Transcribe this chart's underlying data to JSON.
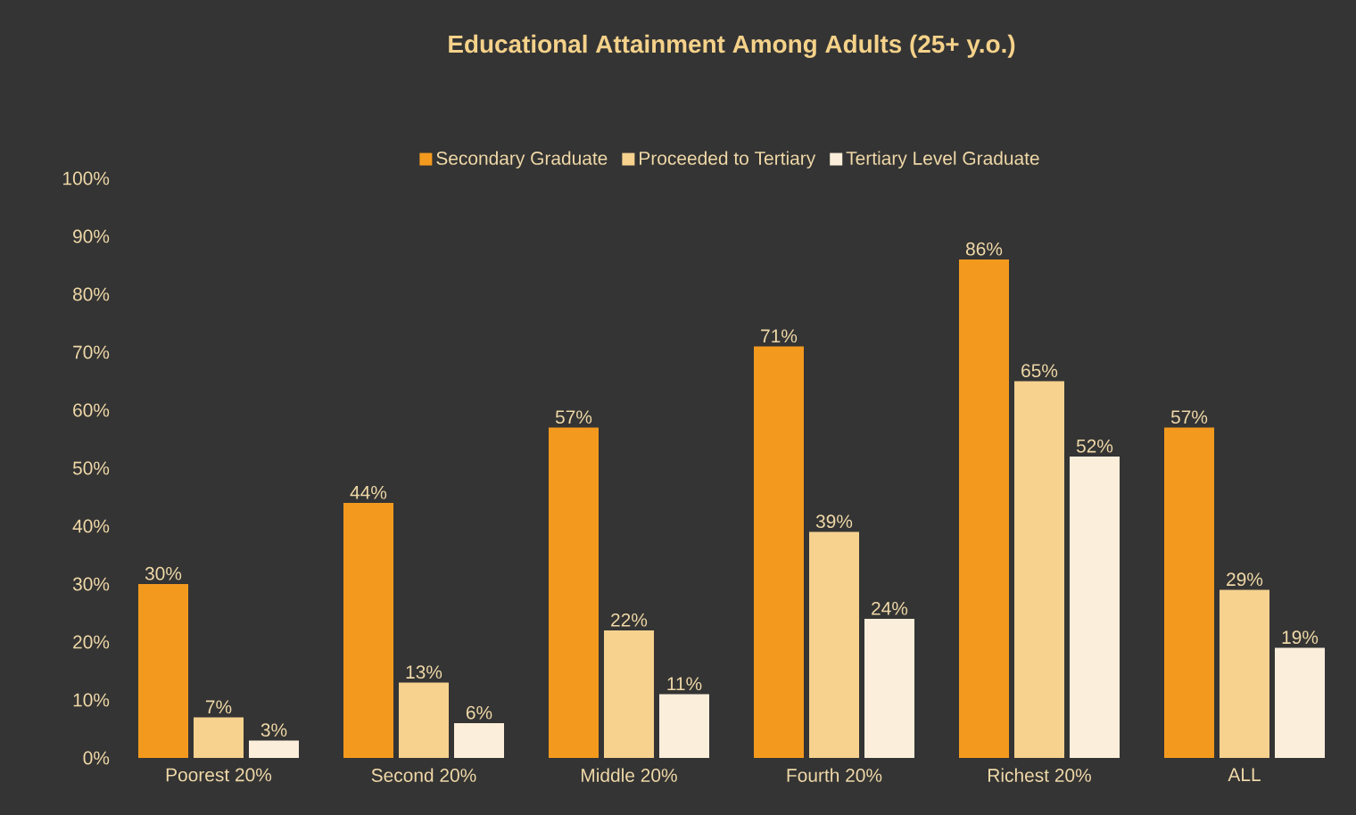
{
  "chart_data": {
    "type": "bar",
    "title": "Educational Attainment Among Adults (25+ y.o.)",
    "categories": [
      "Poorest 20%",
      "Second 20%",
      "Middle 20%",
      "Fourth 20%",
      "Richest 20%",
      "ALL"
    ],
    "series": [
      {
        "name": "Secondary Graduate",
        "color": "#f39a1e",
        "values": [
          30,
          44,
          57,
          71,
          86,
          57
        ],
        "value_labels": [
          "30%",
          "44%",
          "57%",
          "71%",
          "86%",
          "57%"
        ]
      },
      {
        "name": "Proceeded to Tertiary",
        "color": "#f7d28f",
        "values": [
          7,
          13,
          22,
          39,
          65,
          29
        ],
        "value_labels": [
          "7%",
          "13%",
          "22%",
          "39%",
          "65%",
          "29%"
        ]
      },
      {
        "name": "Tertiary Level Graduate",
        "color": "#fbeedb",
        "values": [
          3,
          6,
          11,
          24,
          52,
          19
        ],
        "value_labels": [
          "3%",
          "6%",
          "11%",
          "24%",
          "52%",
          "19%"
        ]
      }
    ],
    "ylim": [
      0,
      100
    ],
    "yticks": [
      {
        "value": 0,
        "label": "0%"
      },
      {
        "value": 10,
        "label": "10%"
      },
      {
        "value": 20,
        "label": "20%"
      },
      {
        "value": 30,
        "label": "30%"
      },
      {
        "value": 40,
        "label": "40%"
      },
      {
        "value": 50,
        "label": "50%"
      },
      {
        "value": 60,
        "label": "60%"
      },
      {
        "value": 70,
        "label": "70%"
      },
      {
        "value": 80,
        "label": "80%"
      },
      {
        "value": 90,
        "label": "90%"
      },
      {
        "value": 100,
        "label": "100%"
      }
    ],
    "legend": "top"
  }
}
